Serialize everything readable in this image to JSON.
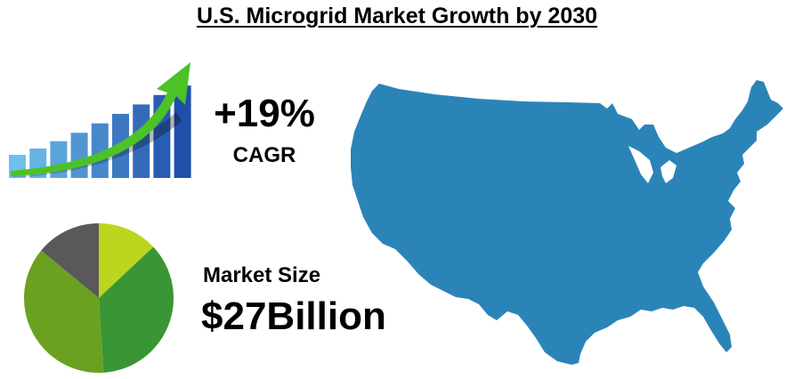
{
  "title": "U.S. Microgrid Market Growth by 2030",
  "cagr": {
    "value": "+19%",
    "label": "CAGR"
  },
  "market": {
    "label": "Market Size",
    "value": "$27Billion"
  },
  "growth_bars": [
    0.22,
    0.28,
    0.35,
    0.43,
    0.52,
    0.61,
    0.7,
    0.79,
    0.88
  ],
  "pie_slices": [
    {
      "share": 0.13,
      "color": "#bcd61e"
    },
    {
      "share": 0.36,
      "color": "#3a9534"
    },
    {
      "share": 0.37,
      "color": "#6aa121"
    },
    {
      "share": 0.14,
      "color": "#595959"
    }
  ],
  "icons": {
    "growth": "growth-bar-chart-icon",
    "pie": "pie-chart-icon",
    "map": "united-states-map-icon"
  },
  "colors": {
    "map_fill": "#2b84b8",
    "arrow": "#4cc227",
    "bar_light": "#6fc0ec",
    "bar_dark": "#1f4fa8"
  }
}
